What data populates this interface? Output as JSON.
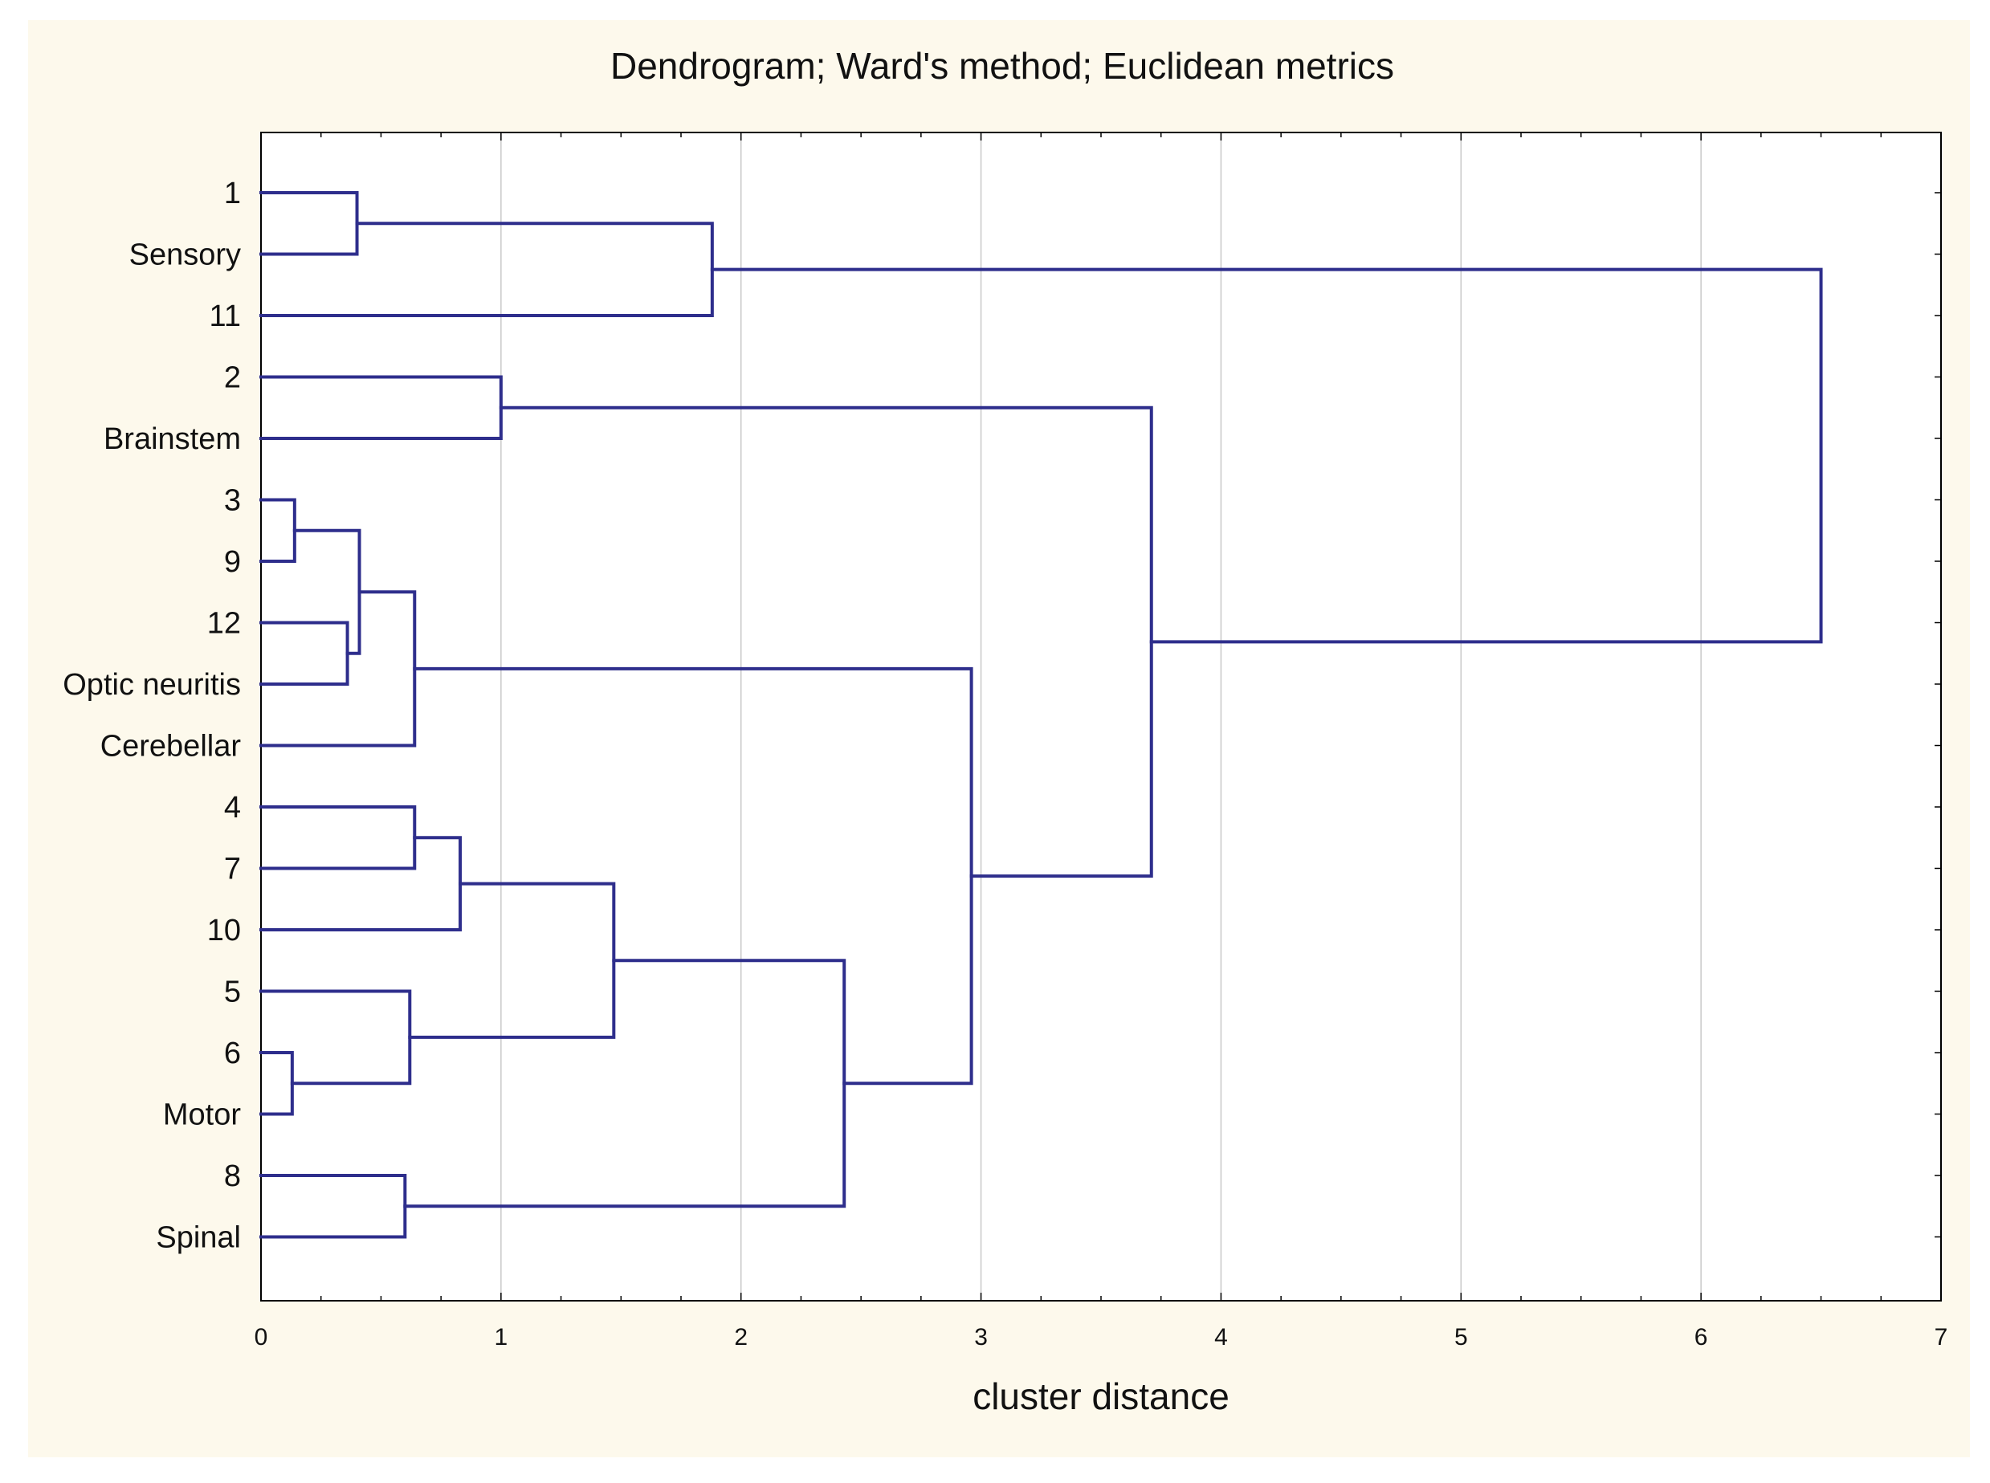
{
  "chart_data": {
    "type": "dendrogram",
    "title": "Dendrogram; Ward's method; Euclidean metrics",
    "xlabel": "cluster distance",
    "ylabel": "",
    "xlim": [
      0,
      7
    ],
    "x_ticks": [
      "0",
      "1",
      "2",
      "3",
      "4",
      "5",
      "6",
      "7"
    ],
    "grid": true,
    "orientation": "horizontal",
    "leaves": [
      "1",
      "Sensory",
      "11",
      "2",
      "Brainstem",
      "3",
      "9",
      "12",
      "Optic neuritis",
      "Cerebellar",
      "4",
      "7",
      "10",
      "5",
      "6",
      "Motor",
      "8",
      "Spinal"
    ],
    "merges": [
      {
        "a": "L:3",
        "b": "L:9",
        "distance": 0.14
      },
      {
        "a": "L:6",
        "b": "L:Motor",
        "distance": 0.13
      },
      {
        "a": "L:12",
        "b": "L:Optic neuritis",
        "distance": 0.36
      },
      {
        "a": "L:1",
        "b": "L:Sensory",
        "distance": 0.4
      },
      {
        "a": "M:0",
        "b": "M:2",
        "distance": 0.41
      },
      {
        "a": "L:8",
        "b": "L:Spinal",
        "distance": 0.6
      },
      {
        "a": "L:5",
        "b": "M:1",
        "distance": 0.62
      },
      {
        "a": "M:4",
        "b": "L:Cerebellar",
        "distance": 0.64
      },
      {
        "a": "L:4",
        "b": "L:7",
        "distance": 0.64
      },
      {
        "a": "M:8",
        "b": "L:10",
        "distance": 0.83
      },
      {
        "a": "L:2",
        "b": "L:Brainstem",
        "distance": 1.0
      },
      {
        "a": "M:9",
        "b": "M:6",
        "distance": 1.47
      },
      {
        "a": "M:3",
        "b": "L:11",
        "distance": 1.88
      },
      {
        "a": "M:11",
        "b": "M:5",
        "distance": 2.43
      },
      {
        "a": "M:7",
        "b": "M:13",
        "distance": 2.96
      },
      {
        "a": "M:10",
        "b": "M:14",
        "distance": 3.71
      },
      {
        "a": "M:12",
        "b": "M:15",
        "distance": 6.5
      }
    ],
    "colors": {
      "link": "#2e2e8c",
      "grid": "#c8c8c8",
      "panel": "#fdf9ec"
    }
  }
}
